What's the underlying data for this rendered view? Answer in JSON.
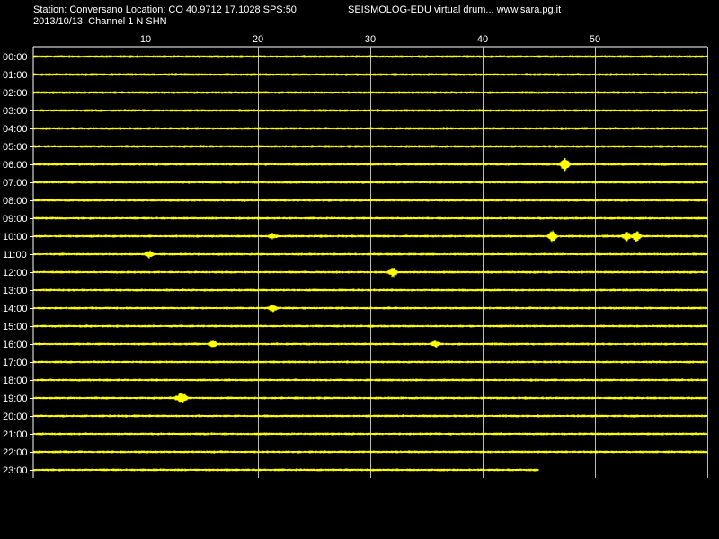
{
  "header": {
    "station_line": "Station: Conversano Location: CO 40.9712 17.1028 SPS:50",
    "app_line": "SEISMOLOG-EDU virtual drum... www.sara.pg.it",
    "date_line": "2013/10/13  Channel 1 N SHN"
  },
  "chart_data": {
    "type": "line",
    "title": "",
    "xlabel": "",
    "ylabel": "",
    "x_unit": "minute",
    "xlim": [
      0,
      60
    ],
    "x_ticks": [
      "10",
      "20",
      "30",
      "40",
      "50"
    ],
    "x_tick_values": [
      10,
      20,
      30,
      40,
      50
    ],
    "grid": true,
    "trace_color": "#ffff00",
    "grid_color": "#ffffff",
    "background": "#000000",
    "row_labels": [
      "00:00",
      "01:00",
      "02:00",
      "03:00",
      "04:00",
      "05:00",
      "06:00",
      "07:00",
      "08:00",
      "09:00",
      "10:00",
      "11:00",
      "12:00",
      "13:00",
      "14:00",
      "15:00",
      "16:00",
      "17:00",
      "18:00",
      "19:00",
      "20:00",
      "21:00",
      "22:00",
      "23:00"
    ],
    "last_row_end_minute": 45,
    "events": [
      {
        "row": "06:00",
        "minute": 47.3,
        "amplitude": 8
      },
      {
        "row": "10:00",
        "minute": 21.3,
        "amplitude": 3
      },
      {
        "row": "10:00",
        "minute": 46.2,
        "amplitude": 6
      },
      {
        "row": "10:00",
        "minute": 52.8,
        "amplitude": 5
      },
      {
        "row": "10:00",
        "minute": 53.7,
        "amplitude": 6
      },
      {
        "row": "11:00",
        "minute": 10.3,
        "amplitude": 4
      },
      {
        "row": "12:00",
        "minute": 32.0,
        "amplitude": 5
      },
      {
        "row": "14:00",
        "minute": 21.3,
        "amplitude": 4
      },
      {
        "row": "16:00",
        "minute": 16.0,
        "amplitude": 4
      },
      {
        "row": "16:00",
        "minute": 35.8,
        "amplitude": 3
      },
      {
        "row": "19:00",
        "minute": 13.0,
        "amplitude": 4
      },
      {
        "row": "19:00",
        "minute": 13.4,
        "amplitude": 4
      }
    ]
  }
}
